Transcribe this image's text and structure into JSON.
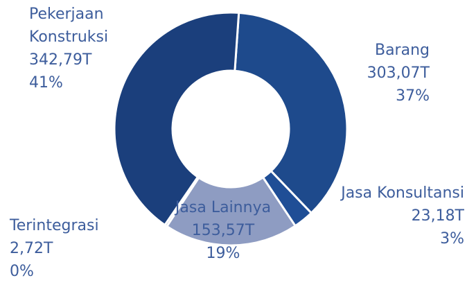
{
  "chart_data": {
    "type": "donut",
    "categories": [
      "Barang",
      "Jasa Konsultansi",
      "Jasa Lainnya",
      "Terintegrasi",
      "Pekerjaan Konstruksi"
    ],
    "values": [
      303.07,
      23.18,
      153.57,
      2.72,
      342.79
    ],
    "value_labels": [
      "303,07T",
      "23,18T",
      "153,57T",
      "2,72T",
      "342,79T"
    ],
    "percent_labels": [
      "37%",
      "3%",
      "19%",
      "0%",
      "41%"
    ],
    "colors": [
      "#1e4a8c",
      "#1f4e96",
      "#8e9cc2",
      "#8e9cc2",
      "#1b3f7c"
    ]
  }
}
